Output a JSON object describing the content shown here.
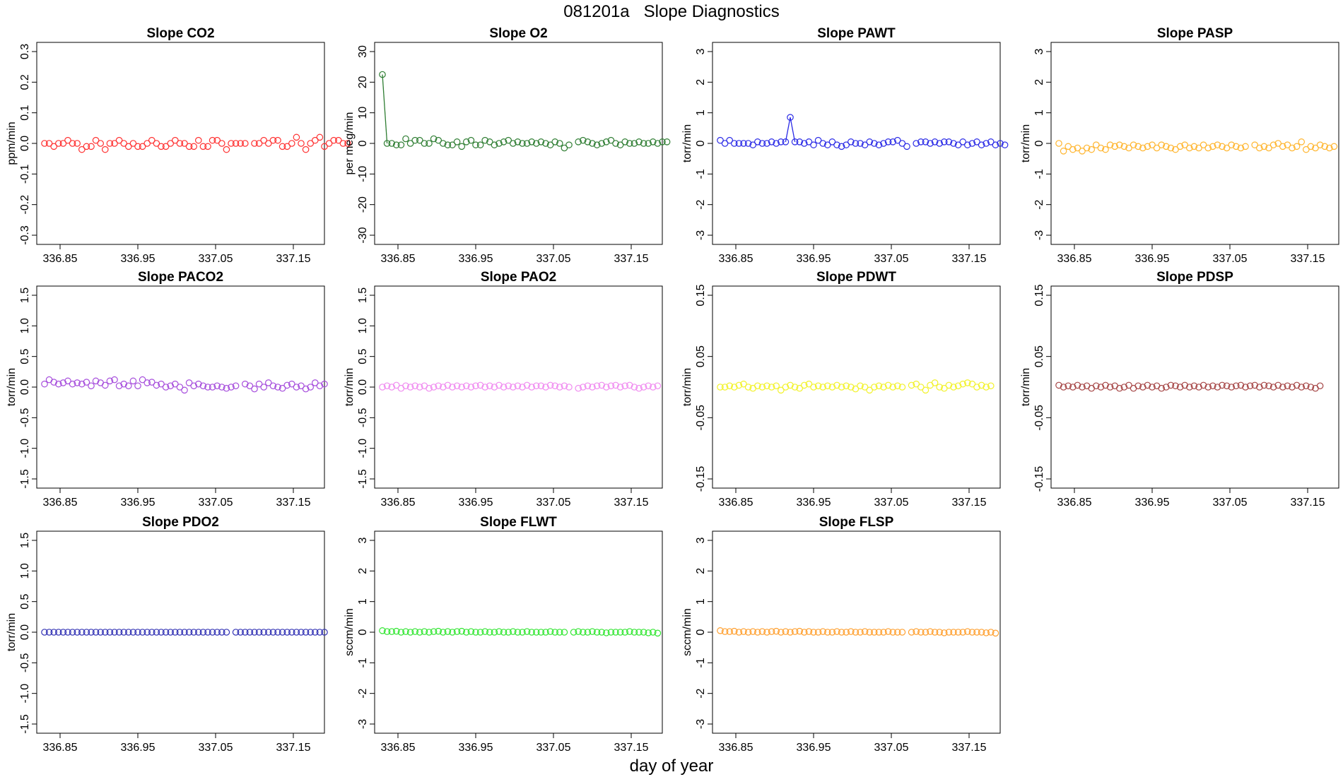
{
  "page": {
    "title": "081201a   Slope Diagnostics",
    "x_axis_label": "day of year"
  },
  "chart_data": [
    {
      "type": "scatter",
      "title": "Slope CO2",
      "ylabel": "ppm/min",
      "color": "#ff3030",
      "xlim": [
        336.82,
        337.19
      ],
      "ylim": [
        -0.33,
        0.33
      ],
      "xticks": [
        "336.85",
        "336.95",
        "337.05",
        "337.15"
      ],
      "yticks": [
        "0.3",
        "0.2",
        "0.1",
        "0.0",
        "-0.1",
        "-0.2",
        "-0.3"
      ],
      "x_start": 336.83,
      "x_step": 0.006,
      "values": [
        0.0,
        0.0,
        -0.01,
        0.0,
        0.0,
        0.01,
        0.0,
        0.0,
        -0.02,
        -0.01,
        -0.01,
        0.01,
        0.0,
        -0.02,
        0.0,
        0.0,
        0.01,
        0.0,
        -0.01,
        0.0,
        -0.01,
        -0.01,
        0.0,
        0.01,
        0.0,
        -0.01,
        -0.01,
        0.0,
        0.01,
        0.0,
        0.0,
        -0.01,
        -0.01,
        0.01,
        -0.01,
        -0.01,
        0.01,
        0.01,
        0.0,
        -0.02,
        0.0,
        0.0,
        0.0,
        0.0,
        null,
        0.0,
        0.0,
        0.01,
        0.0,
        0.01,
        0.01,
        -0.01,
        -0.01,
        0.0,
        0.02,
        0.0,
        -0.02,
        0.0,
        0.01,
        0.02,
        -0.01,
        0.0,
        0.01,
        0.01,
        0.0,
        0.0
      ],
      "line_segments": []
    },
    {
      "type": "scatter",
      "title": "Slope O2",
      "ylabel": "per meg/min",
      "color": "#2e7d32",
      "xlim": [
        336.82,
        337.19
      ],
      "ylim": [
        -33,
        33
      ],
      "xticks": [
        "336.85",
        "336.95",
        "337.05",
        "337.15"
      ],
      "yticks": [
        "30",
        "20",
        "10",
        "0",
        "-10",
        "-20",
        "-30"
      ],
      "x_start": 336.83,
      "x_step": 0.006,
      "values": [
        22.5,
        0.0,
        0.0,
        -0.5,
        -0.5,
        1.5,
        0.0,
        1.0,
        1.0,
        0.0,
        0.0,
        1.5,
        1.0,
        0.0,
        -0.5,
        -0.5,
        0.5,
        -1.0,
        0.5,
        1.0,
        -0.5,
        -0.5,
        1.0,
        0.5,
        -0.5,
        0.0,
        0.5,
        1.0,
        0.0,
        0.5,
        0.0,
        0.0,
        0.5,
        0.0,
        0.5,
        0.0,
        -0.5,
        0.5,
        0.0,
        -1.5,
        -0.5,
        null,
        0.5,
        1.0,
        0.5,
        0.0,
        -0.5,
        0.0,
        0.5,
        1.0,
        0.0,
        -0.5,
        0.5,
        0.0,
        0.0,
        0.5,
        0.0,
        0.0,
        0.5,
        0.0,
        0.5,
        0.5
      ],
      "line_segments": [
        [
          0,
          1
        ]
      ]
    },
    {
      "type": "scatter",
      "title": "Slope PAWT",
      "ylabel": "torr/min",
      "color": "#2a2ae6",
      "xlim": [
        336.82,
        337.19
      ],
      "ylim": [
        -3.3,
        3.3
      ],
      "xticks": [
        "336.85",
        "336.95",
        "337.05",
        "337.15"
      ],
      "yticks": [
        "3",
        "2",
        "1",
        "0",
        "-1",
        "-2",
        "-3"
      ],
      "x_start": 336.83,
      "x_step": 0.006,
      "values": [
        0.1,
        0.0,
        0.1,
        0.0,
        0.0,
        0.0,
        0.0,
        -0.05,
        0.05,
        0.0,
        0.0,
        0.05,
        0.0,
        0.05,
        0.05,
        0.85,
        0.05,
        0.05,
        0.0,
        0.05,
        -0.05,
        0.1,
        0.0,
        -0.05,
        0.05,
        -0.05,
        -0.1,
        -0.05,
        0.05,
        0.0,
        0.0,
        -0.05,
        0.05,
        0.0,
        -0.05,
        0.0,
        0.05,
        0.05,
        0.1,
        0.0,
        -0.1,
        null,
        0.0,
        0.05,
        0.05,
        0.0,
        0.05,
        0.0,
        0.05,
        0.05,
        0.0,
        -0.05,
        0.05,
        -0.05,
        0.0,
        0.05,
        -0.05,
        0.0,
        0.05,
        -0.05,
        0.0,
        -0.05
      ],
      "line_segments": [
        [
          14,
          15
        ],
        [
          15,
          16
        ]
      ]
    },
    {
      "type": "scatter",
      "title": "Slope PASP",
      "ylabel": "torr/min",
      "color": "#ffb52e",
      "xlim": [
        336.82,
        337.19
      ],
      "ylim": [
        -3.3,
        3.3
      ],
      "xticks": [
        "336.85",
        "336.95",
        "337.05",
        "337.15"
      ],
      "yticks": [
        "3",
        "2",
        "1",
        "0",
        "-1",
        "-2",
        "-3"
      ],
      "x_start": 336.83,
      "x_step": 0.006,
      "values": [
        0.0,
        -0.25,
        -0.1,
        -0.2,
        -0.15,
        -0.25,
        -0.15,
        -0.2,
        -0.05,
        -0.15,
        -0.2,
        -0.05,
        -0.1,
        -0.05,
        -0.1,
        -0.15,
        -0.05,
        -0.1,
        -0.15,
        -0.1,
        -0.05,
        -0.15,
        -0.05,
        -0.1,
        -0.15,
        -0.2,
        -0.1,
        -0.05,
        -0.15,
        -0.1,
        -0.15,
        -0.05,
        -0.15,
        -0.1,
        -0.05,
        -0.1,
        -0.15,
        -0.05,
        -0.1,
        -0.15,
        -0.1,
        null,
        -0.05,
        -0.15,
        -0.1,
        -0.15,
        -0.05,
        0.0,
        -0.1,
        -0.05,
        -0.15,
        -0.1,
        0.05,
        -0.2,
        -0.1,
        -0.15,
        -0.05,
        -0.1,
        -0.15,
        -0.1
      ],
      "line_segments": []
    },
    {
      "type": "scatter",
      "title": "Slope PACO2",
      "ylabel": "torr/min",
      "color": "#a64ddc",
      "xlim": [
        336.82,
        337.19
      ],
      "ylim": [
        -1.65,
        1.65
      ],
      "xticks": [
        "336.85",
        "336.95",
        "337.05",
        "337.15"
      ],
      "yticks": [
        "1.5",
        "1.0",
        "0.5",
        "0.0",
        "-0.5",
        "-1.0",
        "-1.5"
      ],
      "x_start": 336.83,
      "x_step": 0.006,
      "values": [
        0.05,
        0.12,
        0.08,
        0.05,
        0.07,
        0.1,
        0.05,
        0.07,
        0.05,
        0.08,
        0.02,
        0.1,
        0.07,
        0.03,
        0.1,
        0.12,
        0.02,
        0.05,
        0.02,
        0.1,
        0.02,
        0.12,
        0.07,
        0.08,
        0.03,
        0.05,
        0.0,
        0.02,
        0.05,
        0.0,
        -0.05,
        0.07,
        0.02,
        0.05,
        0.02,
        0.0,
        0.0,
        0.02,
        0.0,
        -0.02,
        0.0,
        0.02,
        null,
        0.05,
        0.02,
        -0.03,
        0.05,
        0.0,
        0.07,
        0.02,
        0.0,
        -0.02,
        0.03,
        0.05,
        0.0,
        0.02,
        -0.03,
        0.0,
        0.07,
        0.02,
        0.05
      ],
      "line_segments": []
    },
    {
      "type": "scatter",
      "title": "Slope PAO2",
      "ylabel": "torr/min",
      "color": "#f08cf0",
      "xlim": [
        336.82,
        337.19
      ],
      "ylim": [
        -1.65,
        1.65
      ],
      "xticks": [
        "336.85",
        "336.95",
        "337.05",
        "337.15"
      ],
      "yticks": [
        "1.5",
        "1.0",
        "0.5",
        "0.0",
        "-0.5",
        "-1.0",
        "-1.5"
      ],
      "x_start": 336.83,
      "x_step": 0.006,
      "values": [
        0.0,
        0.02,
        0.0,
        0.03,
        -0.02,
        0.02,
        0.0,
        0.02,
        0.0,
        0.02,
        -0.02,
        0.0,
        0.02,
        0.0,
        0.03,
        0.0,
        0.02,
        0.0,
        0.02,
        0.0,
        0.02,
        0.03,
        0.0,
        0.02,
        0.0,
        0.03,
        0.0,
        0.02,
        0.0,
        0.02,
        0.0,
        0.03,
        0.0,
        0.02,
        0.02,
        0.0,
        0.03,
        0.02,
        0.0,
        0.02,
        0.0,
        null,
        -0.02,
        0.0,
        0.02,
        0.0,
        0.02,
        0.03,
        0.0,
        0.02,
        0.03,
        0.0,
        0.02,
        0.03,
        0.0,
        -0.02,
        0.0,
        0.02,
        0.0,
        0.02
      ],
      "line_segments": []
    },
    {
      "type": "scatter",
      "title": "Slope PDWT",
      "ylabel": "torr/min",
      "color": "#f2f22a",
      "xlim": [
        336.82,
        337.19
      ],
      "ylim": [
        -0.165,
        0.165
      ],
      "xticks": [
        "336.85",
        "336.95",
        "337.05",
        "337.15"
      ],
      "yticks": [
        "0.15",
        "0.05",
        "-0.05",
        "-0.15"
      ],
      "ytick_values": [
        0.15,
        0.05,
        -0.05,
        -0.15
      ],
      "x_start": 336.83,
      "x_step": 0.006,
      "values": [
        0.0,
        0.0,
        0.002,
        0.0,
        0.003,
        0.005,
        0.0,
        -0.002,
        0.002,
        0.0,
        0.002,
        0.0,
        0.002,
        -0.005,
        0.0,
        0.003,
        0.0,
        -0.002,
        0.003,
        0.005,
        0.0,
        0.002,
        0.0,
        0.002,
        0.0,
        0.003,
        0.0,
        0.002,
        0.0,
        -0.003,
        0.002,
        0.0,
        -0.005,
        0.0,
        0.002,
        0.0,
        0.003,
        0.0,
        0.002,
        0.0,
        null,
        0.003,
        0.005,
        0.0,
        -0.005,
        0.003,
        0.007,
        0.0,
        -0.002,
        0.003,
        0.0,
        0.002,
        0.005,
        0.007,
        0.005,
        0.0,
        0.003,
        0.0,
        0.002
      ],
      "line_segments": []
    },
    {
      "type": "scatter",
      "title": "Slope PDSP",
      "ylabel": "torr/min",
      "color": "#a54545",
      "xlim": [
        336.82,
        337.19
      ],
      "ylim": [
        -0.165,
        0.165
      ],
      "xticks": [
        "336.85",
        "336.95",
        "337.05",
        "337.15"
      ],
      "yticks": [
        "0.15",
        "0.05",
        "-0.05",
        "-0.15"
      ],
      "ytick_values": [
        0.15,
        0.05,
        -0.05,
        -0.15
      ],
      "x_start": 336.83,
      "x_step": 0.006,
      "values": [
        0.003,
        0.0,
        0.002,
        0.0,
        0.003,
        0.0,
        0.002,
        -0.002,
        0.002,
        0.0,
        0.003,
        0.0,
        0.002,
        -0.002,
        0.0,
        0.003,
        -0.002,
        0.002,
        0.0,
        0.003,
        0.0,
        0.002,
        -0.002,
        0.0,
        0.003,
        0.002,
        0.0,
        0.003,
        0.0,
        0.002,
        0.0,
        0.003,
        0.0,
        0.002,
        0.0,
        0.003,
        0.002,
        0.0,
        0.002,
        0.003,
        0.0,
        0.002,
        0.003,
        0.0,
        0.003,
        0.002,
        0.0,
        0.003,
        0.0,
        0.002,
        0.0,
        0.003,
        0.0,
        0.002,
        0.0,
        -0.002,
        0.002
      ],
      "line_segments": []
    },
    {
      "type": "scatter",
      "title": "Slope PDO2",
      "ylabel": "torr/min",
      "color": "#3232b4",
      "xlim": [
        336.82,
        337.19
      ],
      "ylim": [
        -1.65,
        1.65
      ],
      "xticks": [
        "336.85",
        "336.95",
        "337.05",
        "337.15"
      ],
      "yticks": [
        "1.5",
        "1.0",
        "0.5",
        "0.0",
        "-0.5",
        "-1.0",
        "-1.5"
      ],
      "x_start": 336.83,
      "x_step": 0.006,
      "values": [
        0.0,
        0.0,
        0.0,
        0.0,
        0.0,
        0.0,
        0.0,
        0.0,
        0.0,
        0.0,
        0.0,
        0.0,
        0.0,
        0.0,
        0.0,
        0.0,
        0.0,
        0.0,
        0.0,
        0.0,
        0.0,
        0.0,
        0.0,
        0.0,
        0.0,
        0.0,
        0.0,
        0.0,
        0.0,
        0.0,
        0.0,
        0.0,
        0.0,
        0.0,
        0.0,
        0.0,
        0.0,
        0.0,
        0.0,
        0.0,
        null,
        0.0,
        0.0,
        0.0,
        0.0,
        0.0,
        0.0,
        0.0,
        0.0,
        0.0,
        0.0,
        0.0,
        0.0,
        0.0,
        0.0,
        0.0,
        0.0,
        0.0,
        0.0,
        0.0,
        0.0
      ],
      "line_segments": []
    },
    {
      "type": "scatter",
      "title": "Slope FLWT",
      "ylabel": "sccm/min",
      "color": "#32e632",
      "xlim": [
        336.82,
        337.19
      ],
      "ylim": [
        -3.3,
        3.3
      ],
      "xticks": [
        "336.85",
        "336.95",
        "337.05",
        "337.15"
      ],
      "yticks": [
        "3",
        "2",
        "1",
        "0",
        "-1",
        "-2",
        "-3"
      ],
      "x_start": 336.83,
      "x_step": 0.006,
      "values": [
        0.05,
        0.02,
        0.02,
        0.03,
        0.0,
        0.02,
        0.0,
        0.02,
        0.0,
        0.02,
        0.0,
        0.02,
        0.03,
        0.0,
        0.02,
        0.0,
        0.02,
        0.03,
        0.0,
        0.02,
        0.0,
        0.0,
        0.02,
        0.0,
        0.0,
        0.02,
        0.0,
        0.0,
        0.02,
        0.0,
        0.0,
        0.02,
        0.0,
        0.0,
        0.0,
        0.0,
        0.02,
        0.0,
        0.0,
        0.0,
        null,
        0.0,
        0.02,
        0.0,
        0.0,
        0.02,
        0.0,
        0.0,
        -0.02,
        0.0,
        0.0,
        0.0,
        0.0,
        0.02,
        0.0,
        0.0,
        0.0,
        -0.02,
        0.0,
        -0.03
      ],
      "line_segments": []
    },
    {
      "type": "scatter",
      "title": "Slope FLSP",
      "ylabel": "sccm/min",
      "color": "#ffa030",
      "xlim": [
        336.82,
        337.19
      ],
      "ylim": [
        -3.3,
        3.3
      ],
      "xticks": [
        "336.85",
        "336.95",
        "337.05",
        "337.15"
      ],
      "yticks": [
        "3",
        "2",
        "1",
        "0",
        "-1",
        "-2",
        "-3"
      ],
      "x_start": 336.83,
      "x_step": 0.006,
      "values": [
        0.05,
        0.02,
        0.02,
        0.03,
        0.0,
        0.02,
        0.0,
        0.02,
        0.0,
        0.02,
        0.0,
        0.02,
        0.03,
        0.0,
        0.02,
        0.0,
        0.02,
        0.03,
        0.0,
        0.02,
        0.0,
        0.0,
        0.02,
        0.0,
        0.0,
        0.02,
        0.0,
        0.0,
        0.02,
        0.0,
        0.0,
        0.02,
        0.0,
        0.0,
        0.0,
        0.0,
        0.02,
        0.0,
        0.0,
        0.0,
        null,
        0.0,
        0.02,
        0.0,
        0.0,
        0.02,
        0.0,
        0.0,
        -0.02,
        0.0,
        0.0,
        0.0,
        0.0,
        0.02,
        0.0,
        0.0,
        0.0,
        -0.02,
        0.0,
        -0.03
      ],
      "line_segments": []
    }
  ]
}
